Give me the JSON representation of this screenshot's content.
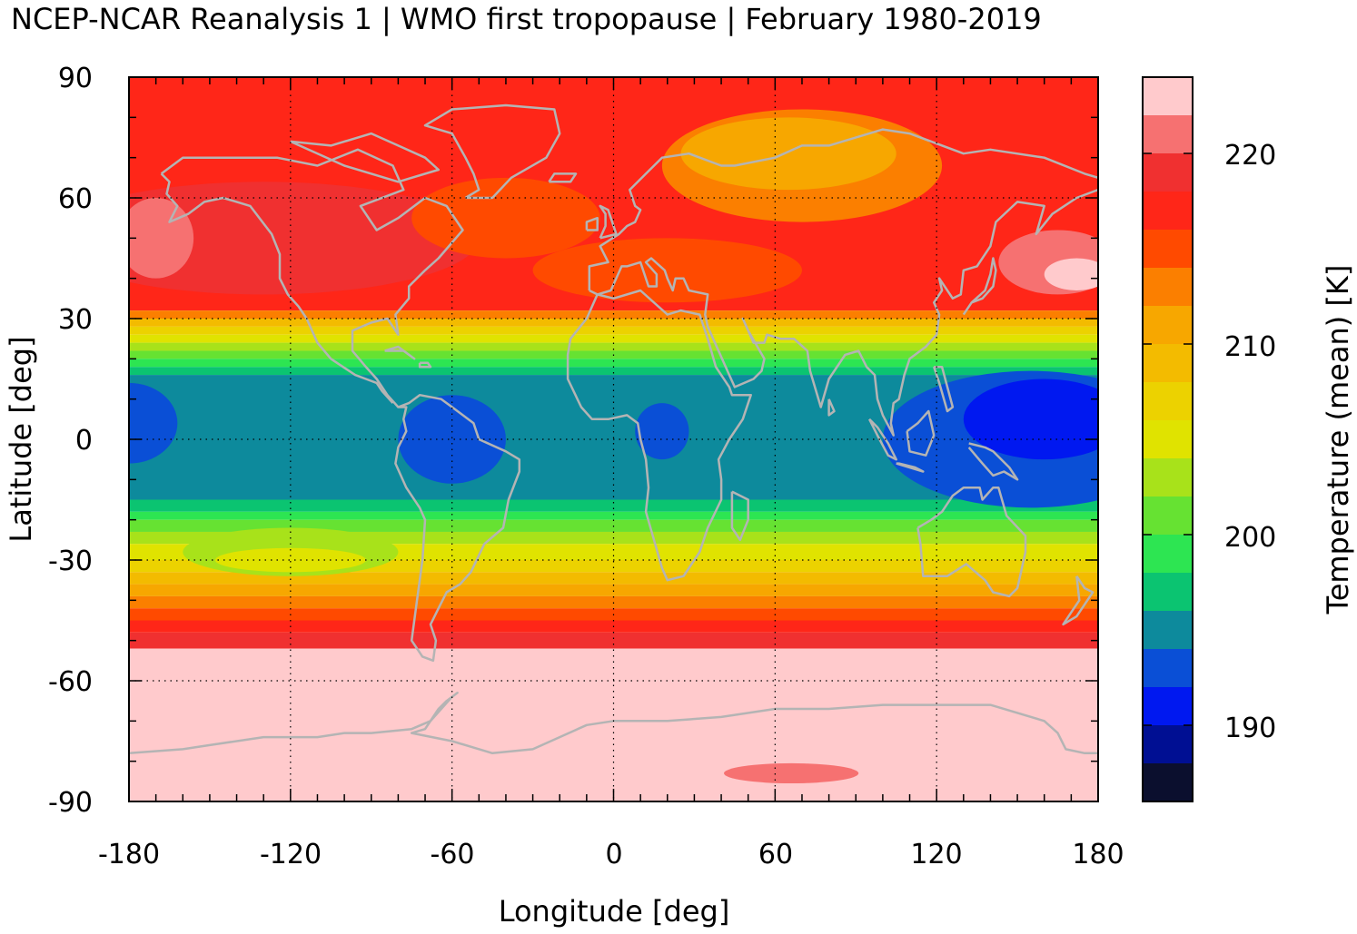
{
  "chart_data": {
    "type": "heatmap",
    "title": "NCEP-NCAR Reanalysis 1 | WMO first tropopause | February 1980-2019",
    "xlabel": "Longitude [deg]",
    "ylabel": "Latitude [deg]",
    "colorbar_label": "Temperature (mean) [K]",
    "xlim": [
      -180,
      180
    ],
    "ylim": [
      -90,
      90
    ],
    "x_ticks": [
      -180,
      -120,
      -60,
      0,
      60,
      120,
      180
    ],
    "y_ticks": [
      90,
      60,
      30,
      0,
      -30,
      -60,
      -90
    ],
    "x_tick_labels": [
      "-180",
      "-120",
      "-60",
      "0",
      "60",
      "120",
      "180"
    ],
    "y_tick_labels": [
      "90",
      "60",
      "30",
      "0",
      "-30",
      "-60",
      "-90"
    ],
    "grid": true,
    "colorbar": {
      "range": [
        186,
        224
      ],
      "ticks": [
        190,
        200,
        210,
        220
      ],
      "tick_labels": [
        "190",
        "200",
        "210",
        "220"
      ],
      "bins": [
        {
          "from": 186,
          "to": 188,
          "color": "#0b0f2e"
        },
        {
          "from": 188,
          "to": 190,
          "color": "#000f93"
        },
        {
          "from": 190,
          "to": 192,
          "color": "#0018f0"
        },
        {
          "from": 192,
          "to": 194,
          "color": "#0a4fd6"
        },
        {
          "from": 194,
          "to": 196,
          "color": "#0d8a9c"
        },
        {
          "from": 196,
          "to": 198,
          "color": "#0bc471"
        },
        {
          "from": 198,
          "to": 200,
          "color": "#2de552"
        },
        {
          "from": 200,
          "to": 202,
          "color": "#66e232"
        },
        {
          "from": 202,
          "to": 204,
          "color": "#a8e21a"
        },
        {
          "from": 204,
          "to": 206,
          "color": "#e0e300"
        },
        {
          "from": 206,
          "to": 208,
          "color": "#ecd200"
        },
        {
          "from": 208,
          "to": 210,
          "color": "#f3bb00"
        },
        {
          "from": 210,
          "to": 212,
          "color": "#f7a700"
        },
        {
          "from": 212,
          "to": 214,
          "color": "#fb7f00"
        },
        {
          "from": 214,
          "to": 216,
          "color": "#ff4a00"
        },
        {
          "from": 216,
          "to": 218,
          "color": "#ff2618"
        },
        {
          "from": 218,
          "to": 220,
          "color": "#f03030"
        },
        {
          "from": 220,
          "to": 222,
          "color": "#f67171"
        },
        {
          "from": 222,
          "to": 224,
          "color": "#ffcacc"
        }
      ]
    },
    "regions": [
      {
        "name": "tropical band",
        "lat": [
          -20,
          20
        ],
        "value_K": 195
      },
      {
        "name": "equatorial western Pacific minimum",
        "lon": [
          110,
          180
        ],
        "lat": [
          -20,
          15
        ],
        "value_K": 191
      },
      {
        "name": "South America minimum",
        "lon": [
          -80,
          -40
        ],
        "lat": [
          -15,
          10
        ],
        "value_K": 193
      },
      {
        "name": "central Africa minimum",
        "lon": [
          5,
          30
        ],
        "lat": [
          -8,
          8
        ],
        "value_K": 193
      },
      {
        "name": "eastern Pacific minimum",
        "lon": [
          -180,
          -155
        ],
        "lat": [
          -8,
          15
        ],
        "value_K": 193
      },
      {
        "name": "subtropical transition",
        "lat": [
          20,
          32
        ],
        "value_K": 205
      },
      {
        "name": "southern subtropics",
        "lat": [
          -40,
          -20
        ],
        "value_K": 204
      },
      {
        "name": "northern midlatitudes",
        "lat": [
          32,
          90
        ],
        "value_K": 216
      },
      {
        "name": "Eurasian Arctic warm-orange area",
        "lon": [
          20,
          120
        ],
        "lat": [
          55,
          80
        ],
        "value_K": 211
      },
      {
        "name": "North Pacific maximum",
        "lon": [
          -180,
          -155
        ],
        "lat": [
          40,
          60
        ],
        "value_K": 221
      },
      {
        "name": "Northwest Pacific maximum",
        "lon": [
          135,
          180
        ],
        "lat": [
          35,
          50
        ],
        "value_K": 223
      },
      {
        "name": "Southern Ocean and Antarctica",
        "lat": [
          -90,
          -50
        ],
        "value_K": 223
      }
    ]
  }
}
